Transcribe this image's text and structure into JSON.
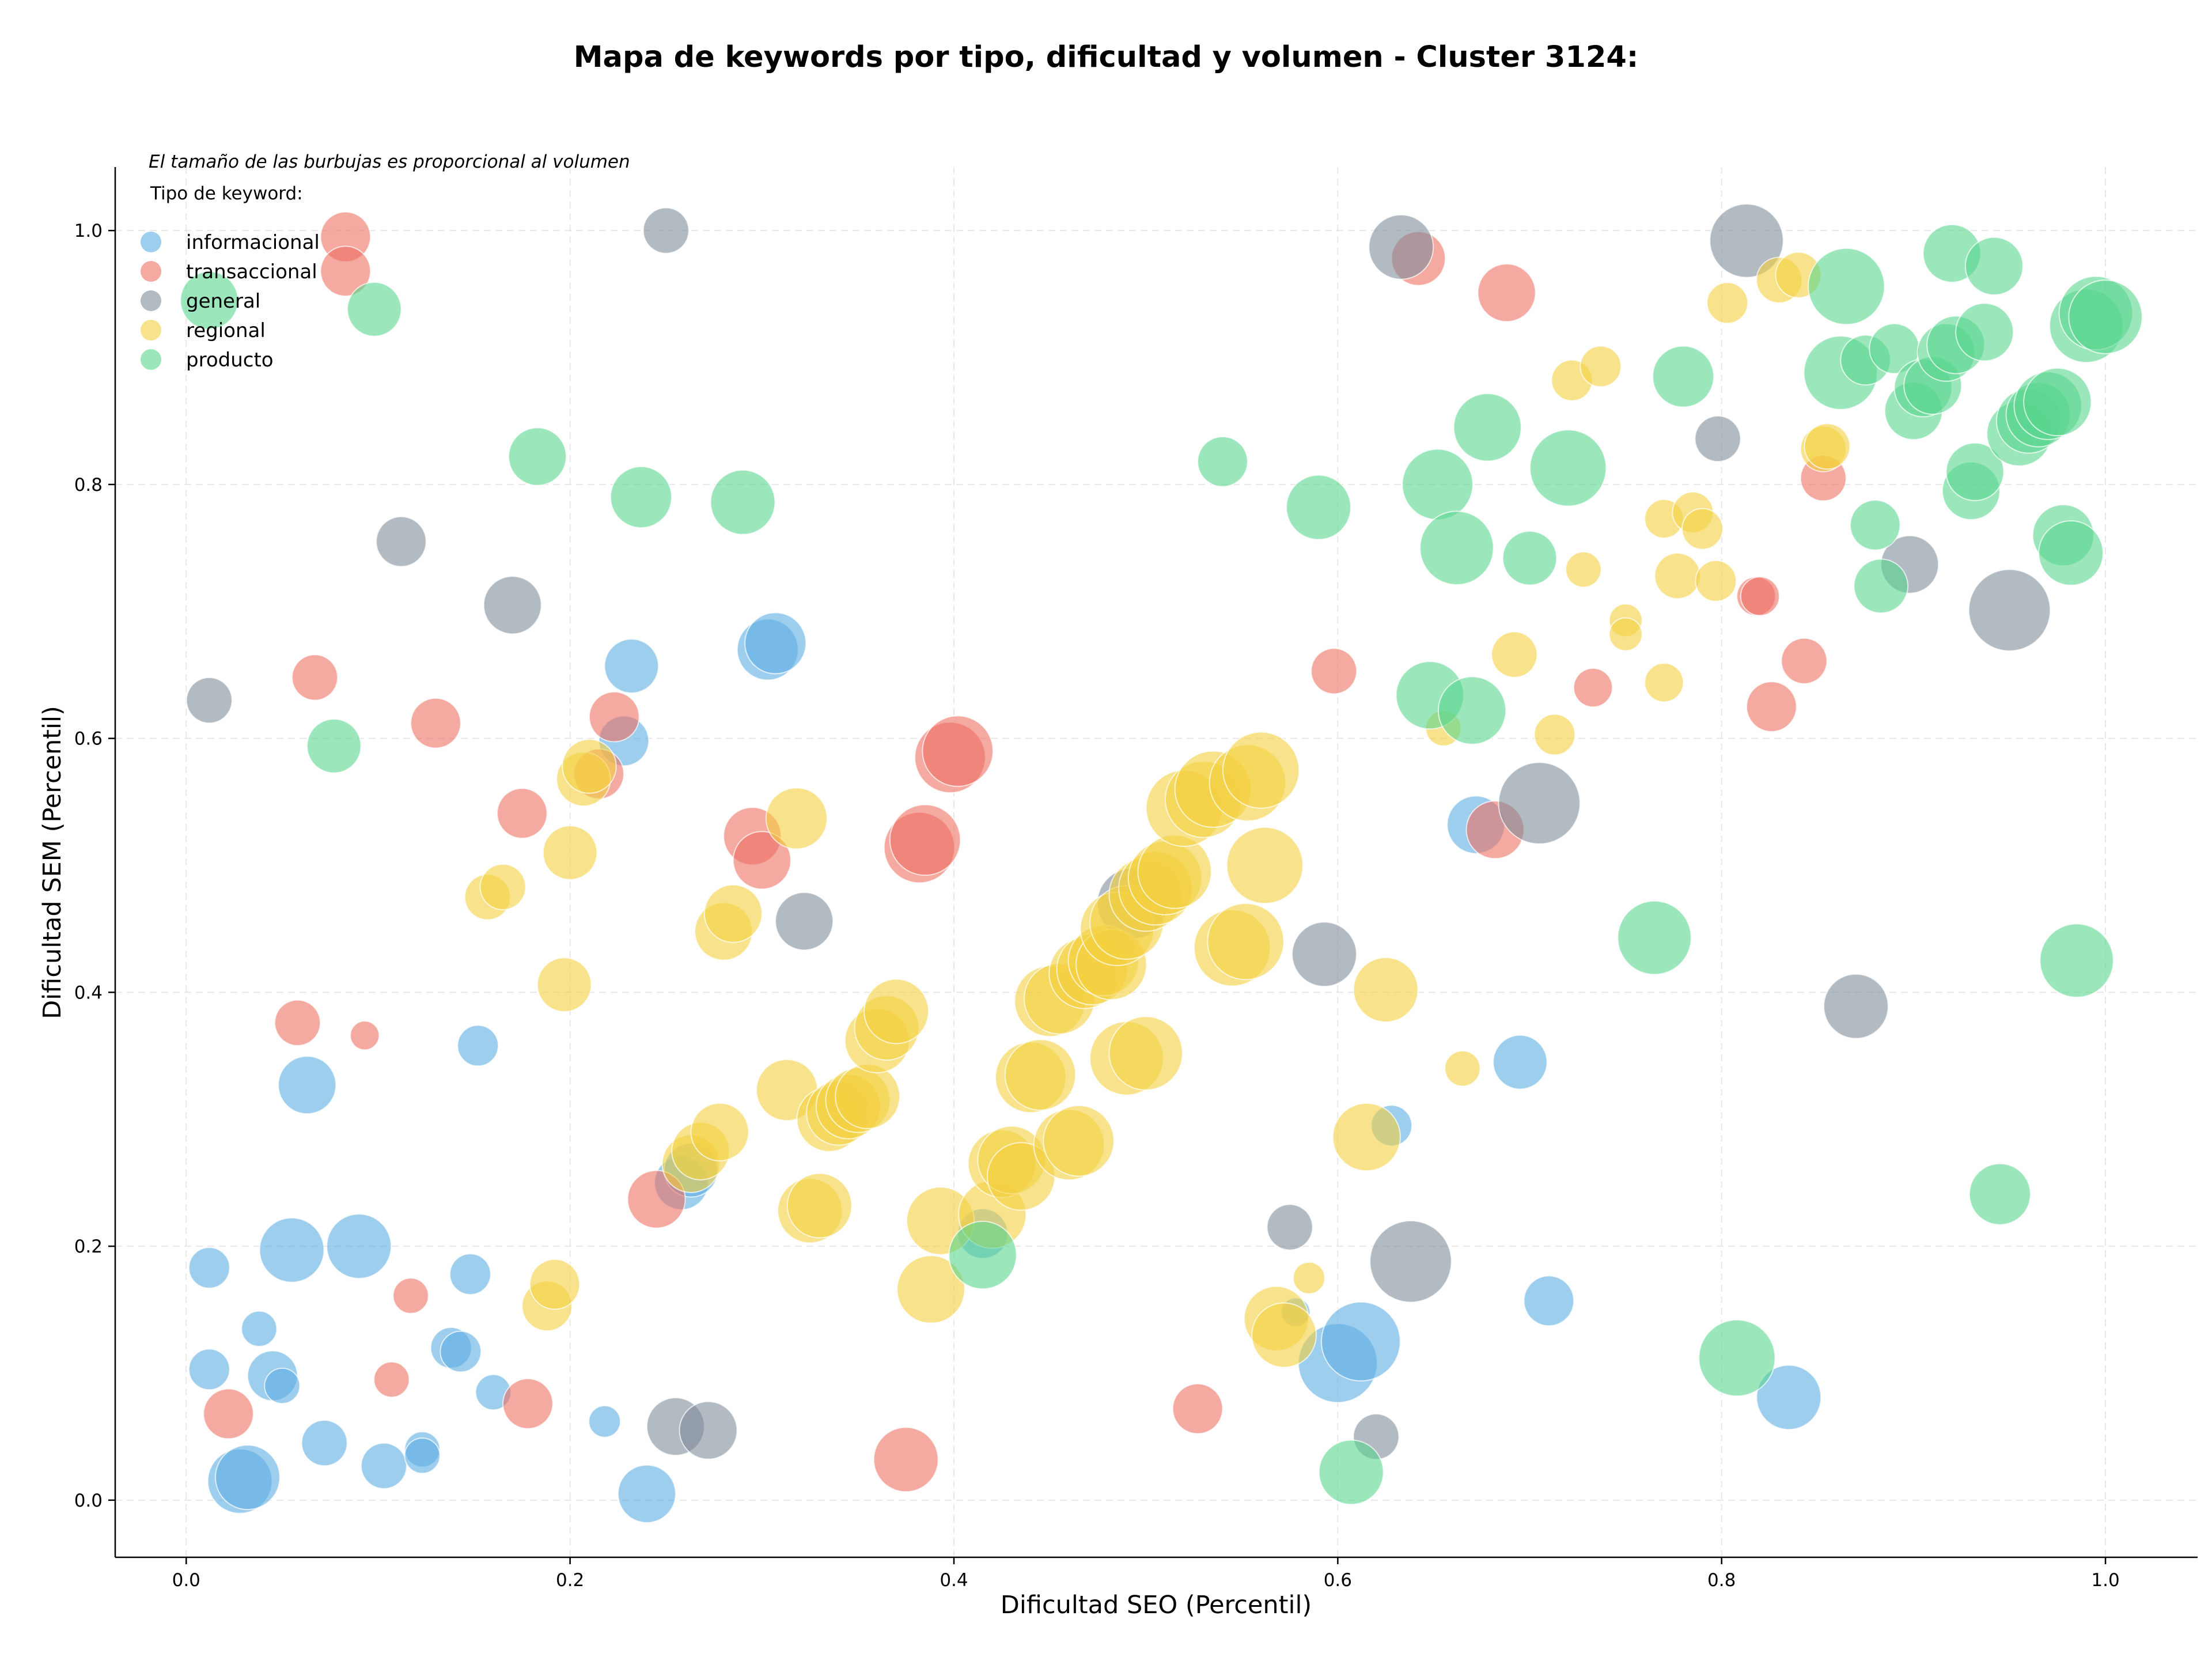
{
  "chart_data": {
    "type": "scatter",
    "title": "Mapa de keywords por tipo, dificultad y volumen - Cluster 3124:",
    "subtitle": "El tamaño de las burbujas es proporcional al volumen",
    "xlabel": "Dificultad SEO (Percentil)",
    "ylabel": "Dificultad SEM (Percentil)",
    "xlim": [
      -0.037,
      1.048
    ],
    "ylim": [
      -0.045,
      1.05
    ],
    "xticks": [
      "0.0",
      "0.2",
      "0.4",
      "0.6",
      "0.8",
      "1.0"
    ],
    "yticks": [
      "0.0",
      "0.2",
      "0.4",
      "0.6",
      "0.8",
      "1.0"
    ],
    "grid": true,
    "legend": {
      "title": "Tipo de keyword:",
      "position": "top-left"
    },
    "series": [
      {
        "name": "informacional",
        "color": "#5DADE2",
        "points": [
          [
            0.012,
            0.183,
            2
          ],
          [
            0.012,
            0.103,
            2
          ],
          [
            0.028,
            0.015,
            5
          ],
          [
            0.032,
            0.018,
            5
          ],
          [
            0.038,
            0.135,
            1.5
          ],
          [
            0.045,
            0.098,
            3
          ],
          [
            0.05,
            0.09,
            1.5
          ],
          [
            0.055,
            0.197,
            5
          ],
          [
            0.063,
            0.327,
            4
          ],
          [
            0.072,
            0.045,
            2.5
          ],
          [
            0.09,
            0.2,
            5
          ],
          [
            0.103,
            0.027,
            2.5
          ],
          [
            0.123,
            0.04,
            1.5
          ],
          [
            0.123,
            0.035,
            1.5
          ],
          [
            0.138,
            0.12,
            2
          ],
          [
            0.143,
            0.117,
            2
          ],
          [
            0.148,
            0.178,
            2
          ],
          [
            0.152,
            0.358,
            2
          ],
          [
            0.16,
            0.085,
            1.5
          ],
          [
            0.218,
            0.062,
            1.2
          ],
          [
            0.228,
            0.598,
            3
          ],
          [
            0.232,
            0.657,
            3.5
          ],
          [
            0.24,
            0.005,
            4
          ],
          [
            0.258,
            0.25,
            3.5
          ],
          [
            0.263,
            0.26,
            3.5
          ],
          [
            0.303,
            0.67,
            4.5
          ],
          [
            0.307,
            0.675,
            4.5
          ],
          [
            0.415,
            0.21,
            3
          ],
          [
            0.578,
            0.148,
            1
          ],
          [
            0.6,
            0.108,
            7.5
          ],
          [
            0.612,
            0.125,
            7.5
          ],
          [
            0.628,
            0.295,
            2
          ],
          [
            0.672,
            0.532,
            4
          ],
          [
            0.695,
            0.345,
            3.5
          ],
          [
            0.71,
            0.157,
            3
          ],
          [
            0.835,
            0.081,
            5
          ]
        ]
      },
      {
        "name": "transaccional",
        "color": "#EC7063",
        "points": [
          [
            0.022,
            0.068,
            3
          ],
          [
            0.058,
            0.376,
            2.5
          ],
          [
            0.067,
            0.648,
            2.5
          ],
          [
            0.083,
            0.995,
            3
          ],
          [
            0.083,
            0.968,
            3
          ],
          [
            0.093,
            0.366,
            1
          ],
          [
            0.107,
            0.095,
            1.5
          ],
          [
            0.117,
            0.161,
            1.5
          ],
          [
            0.13,
            0.612,
            3
          ],
          [
            0.175,
            0.541,
            3
          ],
          [
            0.178,
            0.076,
            3
          ],
          [
            0.215,
            0.572,
            3
          ],
          [
            0.223,
            0.617,
            3
          ],
          [
            0.245,
            0.237,
            4
          ],
          [
            0.295,
            0.523,
            4
          ],
          [
            0.3,
            0.504,
            4
          ],
          [
            0.375,
            0.032,
            5
          ],
          [
            0.382,
            0.514,
            6
          ],
          [
            0.385,
            0.52,
            6
          ],
          [
            0.398,
            0.585,
            6
          ],
          [
            0.402,
            0.59,
            6
          ],
          [
            0.527,
            0.072,
            3
          ],
          [
            0.598,
            0.653,
            2.5
          ],
          [
            0.642,
            0.978,
            3.5
          ],
          [
            0.682,
            0.528,
            4
          ],
          [
            0.688,
            0.951,
            4
          ],
          [
            0.733,
            0.64,
            1.8
          ],
          [
            0.818,
            0.712,
            1.8
          ],
          [
            0.82,
            0.712,
            1.8
          ],
          [
            0.826,
            0.625,
            3
          ],
          [
            0.843,
            0.661,
            2.5
          ],
          [
            0.853,
            0.805,
            2.5
          ]
        ]
      },
      {
        "name": "general",
        "color": "#7F8C9A",
        "points": [
          [
            0.012,
            0.63,
            2.5
          ],
          [
            0.112,
            0.755,
            3
          ],
          [
            0.17,
            0.705,
            4
          ],
          [
            0.25,
            1.0,
            2.5
          ],
          [
            0.255,
            0.058,
            4
          ],
          [
            0.272,
            0.055,
            4
          ],
          [
            0.322,
            0.456,
            4
          ],
          [
            0.493,
            0.47,
            6
          ],
          [
            0.575,
            0.215,
            2.5
          ],
          [
            0.593,
            0.43,
            5
          ],
          [
            0.62,
            0.05,
            2.5
          ],
          [
            0.633,
            0.987,
            5
          ],
          [
            0.638,
            0.188,
            8
          ],
          [
            0.705,
            0.549,
            8
          ],
          [
            0.798,
            0.836,
            2.5
          ],
          [
            0.813,
            0.992,
            6.5
          ],
          [
            0.87,
            0.389,
            5
          ],
          [
            0.898,
            0.737,
            4
          ],
          [
            0.95,
            0.701,
            8
          ]
        ]
      },
      {
        "name": "regional",
        "color": "#F4D03F",
        "points": [
          [
            0.157,
            0.475,
            2.5
          ],
          [
            0.165,
            0.483,
            2.5
          ],
          [
            0.188,
            0.153,
            3
          ],
          [
            0.192,
            0.17,
            3
          ],
          [
            0.197,
            0.406,
            3.5
          ],
          [
            0.2,
            0.51,
            3.5
          ],
          [
            0.207,
            0.568,
            3.5
          ],
          [
            0.21,
            0.578,
            3.5
          ],
          [
            0.28,
            0.448,
            4
          ],
          [
            0.285,
            0.462,
            4
          ],
          [
            0.263,
            0.265,
            4
          ],
          [
            0.268,
            0.275,
            4
          ],
          [
            0.278,
            0.29,
            4
          ],
          [
            0.313,
            0.323,
            4.5
          ],
          [
            0.318,
            0.537,
            4.5
          ],
          [
            0.325,
            0.228,
            5
          ],
          [
            0.33,
            0.232,
            5
          ],
          [
            0.335,
            0.3,
            5
          ],
          [
            0.34,
            0.305,
            5
          ],
          [
            0.345,
            0.31,
            5
          ],
          [
            0.35,
            0.315,
            5
          ],
          [
            0.355,
            0.318,
            5
          ],
          [
            0.36,
            0.362,
            5
          ],
          [
            0.365,
            0.372,
            5
          ],
          [
            0.37,
            0.385,
            5
          ],
          [
            0.388,
            0.166,
            5.5
          ],
          [
            0.393,
            0.22,
            5.5
          ],
          [
            0.42,
            0.225,
            5.5
          ],
          [
            0.425,
            0.265,
            5.5
          ],
          [
            0.43,
            0.268,
            5.5
          ],
          [
            0.435,
            0.255,
            5.5
          ],
          [
            0.44,
            0.333,
            6
          ],
          [
            0.445,
            0.335,
            6
          ],
          [
            0.45,
            0.393,
            6
          ],
          [
            0.455,
            0.395,
            6
          ],
          [
            0.46,
            0.28,
            6
          ],
          [
            0.465,
            0.283,
            6
          ],
          [
            0.468,
            0.415,
            6
          ],
          [
            0.472,
            0.418,
            6
          ],
          [
            0.478,
            0.425,
            6
          ],
          [
            0.482,
            0.422,
            6
          ],
          [
            0.485,
            0.45,
            6.5
          ],
          [
            0.49,
            0.455,
            6.5
          ],
          [
            0.49,
            0.348,
            6.5
          ],
          [
            0.5,
            0.352,
            6.5
          ],
          [
            0.5,
            0.477,
            6.5
          ],
          [
            0.505,
            0.482,
            6.5
          ],
          [
            0.51,
            0.49,
            6.5
          ],
          [
            0.515,
            0.495,
            6.5
          ],
          [
            0.52,
            0.545,
            7
          ],
          [
            0.53,
            0.552,
            7
          ],
          [
            0.535,
            0.56,
            7
          ],
          [
            0.545,
            0.435,
            7
          ],
          [
            0.552,
            0.44,
            7
          ],
          [
            0.553,
            0.565,
            7
          ],
          [
            0.56,
            0.575,
            7
          ],
          [
            0.562,
            0.5,
            7
          ],
          [
            0.568,
            0.143,
            5
          ],
          [
            0.572,
            0.13,
            5
          ],
          [
            0.585,
            0.175,
            1.2
          ],
          [
            0.615,
            0.286,
            5.5
          ],
          [
            0.625,
            0.402,
            5
          ],
          [
            0.655,
            0.608,
            1.5
          ],
          [
            0.665,
            0.34,
            1.5
          ],
          [
            0.692,
            0.666,
            2.5
          ],
          [
            0.713,
            0.603,
            2
          ],
          [
            0.722,
            0.882,
            2
          ],
          [
            0.728,
            0.733,
            1.5
          ],
          [
            0.737,
            0.893,
            2
          ],
          [
            0.75,
            0.693,
            1.3
          ],
          [
            0.75,
            0.682,
            1.3
          ],
          [
            0.77,
            0.773,
            1.8
          ],
          [
            0.77,
            0.644,
            1.8
          ],
          [
            0.777,
            0.728,
            2.5
          ],
          [
            0.785,
            0.778,
            2
          ],
          [
            0.79,
            0.765,
            2
          ],
          [
            0.797,
            0.724,
            2
          ],
          [
            0.803,
            0.943,
            2
          ],
          [
            0.83,
            0.961,
            2.5
          ],
          [
            0.84,
            0.965,
            2.5
          ],
          [
            0.853,
            0.828,
            2.5
          ],
          [
            0.855,
            0.83,
            2.5
          ]
        ]
      },
      {
        "name": "producto",
        "color": "#58D68D",
        "points": [
          [
            0.012,
            0.945,
            4
          ],
          [
            0.077,
            0.594,
            3.5
          ],
          [
            0.098,
            0.938,
            3.5
          ],
          [
            0.183,
            0.822,
            4
          ],
          [
            0.237,
            0.79,
            4.5
          ],
          [
            0.29,
            0.786,
            5
          ],
          [
            0.415,
            0.193,
            5.5
          ],
          [
            0.54,
            0.818,
            3
          ],
          [
            0.59,
            0.782,
            5
          ],
          [
            0.607,
            0.022,
            5
          ],
          [
            0.648,
            0.634,
            5.5
          ],
          [
            0.652,
            0.8,
            6
          ],
          [
            0.662,
            0.75,
            6.5
          ],
          [
            0.67,
            0.622,
            5.5
          ],
          [
            0.678,
            0.845,
            5.5
          ],
          [
            0.7,
            0.742,
            3.5
          ],
          [
            0.72,
            0.813,
            7
          ],
          [
            0.765,
            0.443,
            6.5
          ],
          [
            0.78,
            0.885,
            4.5
          ],
          [
            0.808,
            0.112,
            7
          ],
          [
            0.862,
            0.888,
            6.5
          ],
          [
            0.865,
            0.956,
            7
          ],
          [
            0.875,
            0.898,
            3
          ],
          [
            0.88,
            0.768,
            3
          ],
          [
            0.883,
            0.72,
            3.5
          ],
          [
            0.89,
            0.907,
            3
          ],
          [
            0.9,
            0.858,
            4
          ],
          [
            0.905,
            0.876,
            4
          ],
          [
            0.91,
            0.878,
            4
          ],
          [
            0.917,
            0.904,
            4
          ],
          [
            0.92,
            0.982,
            4
          ],
          [
            0.922,
            0.91,
            4
          ],
          [
            0.93,
            0.795,
            4
          ],
          [
            0.932,
            0.81,
            4
          ],
          [
            0.937,
            0.92,
            4
          ],
          [
            0.942,
            0.972,
            4
          ],
          [
            0.945,
            0.241,
            4.5
          ],
          [
            0.955,
            0.84,
            5
          ],
          [
            0.96,
            0.85,
            5
          ],
          [
            0.965,
            0.855,
            5
          ],
          [
            0.97,
            0.862,
            5.5
          ],
          [
            0.975,
            0.865,
            5.5
          ],
          [
            0.978,
            0.76,
            4.5
          ],
          [
            0.982,
            0.746,
            5
          ],
          [
            0.985,
            0.425,
            6.5
          ],
          [
            0.99,
            0.925,
            6.5
          ],
          [
            0.995,
            0.935,
            6.5
          ],
          [
            1.0,
            0.932,
            6.5
          ]
        ]
      }
    ]
  }
}
